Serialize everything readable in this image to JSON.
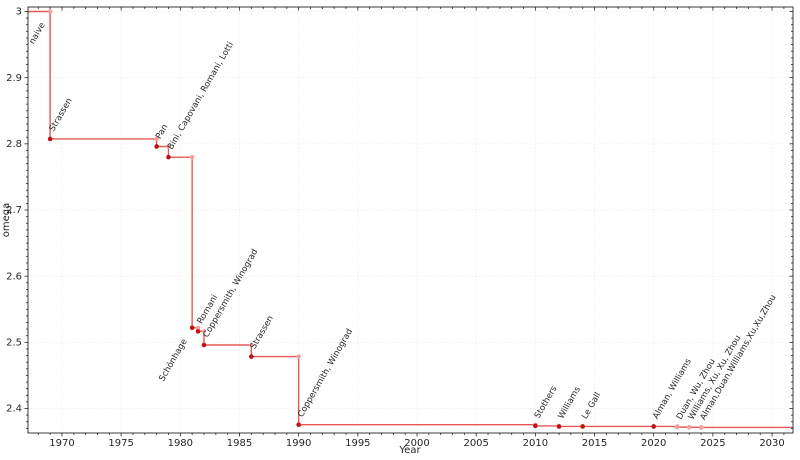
{
  "chart_data": {
    "type": "line",
    "style": "step-post",
    "title": "",
    "xlabel": "Year",
    "ylabel": "omega",
    "grid": true,
    "legend": false,
    "xlim": [
      1967.13,
      2031.77
    ],
    "ylim": [
      2.363,
      3.0068
    ],
    "x_major_ticks": [
      {
        "v": 1970,
        "t": "1970"
      },
      {
        "v": 1975,
        "t": "1975"
      },
      {
        "v": 1980,
        "t": "1980"
      },
      {
        "v": 1985,
        "t": "1985"
      },
      {
        "v": 1990,
        "t": "1990"
      },
      {
        "v": 1995,
        "t": "1995"
      },
      {
        "v": 2000,
        "t": "2000"
      },
      {
        "v": 2005,
        "t": "2005"
      },
      {
        "v": 2010,
        "t": "2010"
      },
      {
        "v": 2015,
        "t": "2015"
      },
      {
        "v": 2020,
        "t": "2020"
      },
      {
        "v": 2025,
        "t": "2025"
      },
      {
        "v": 2030,
        "t": "2030"
      }
    ],
    "y_major_ticks": [
      {
        "v": 2.4,
        "t": "2.4"
      },
      {
        "v": 2.5,
        "t": "2.5"
      },
      {
        "v": 2.6,
        "t": "2.6"
      },
      {
        "v": 2.7,
        "t": "2.7"
      },
      {
        "v": 2.8,
        "t": "2.8"
      },
      {
        "v": 2.9,
        "t": "2.9"
      },
      {
        "v": 3.0,
        "t": "3"
      }
    ],
    "x_minor_step": 1,
    "y_minor_step": 0.01,
    "colors": {
      "line": "#e23b3b",
      "point": "#c11212",
      "corner_point": "#f2a29e",
      "recent_point": "#f2a29e",
      "label": "#1a1a1a",
      "recent_label": "#a6a6a6",
      "grid": "#cfcfcf",
      "axis": "#262626"
    },
    "points": [
      {
        "year": 1969,
        "omega": 3.0,
        "label": "naive",
        "side": "below",
        "style": "corner"
      },
      {
        "year": 1969,
        "omega": 2.8074,
        "label": "Strassen",
        "side": "above",
        "style": "solid"
      },
      {
        "year": 1978,
        "omega": 2.796,
        "label": "Pan",
        "side": "above",
        "style": "solid"
      },
      {
        "year": 1979,
        "omega": 2.7799,
        "label": "Bini, Capovani, Romani, Lotti",
        "side": "above",
        "style": "solid"
      },
      {
        "year": 1981,
        "omega": 2.522,
        "label": "Schönhage",
        "side": "below",
        "style": "solid"
      },
      {
        "year": 1981.5,
        "omega": 2.5166,
        "label": "Romani",
        "side": "above",
        "style": "solid"
      },
      {
        "year": 1982,
        "omega": 2.496,
        "label": "Coppersmith, Winograd",
        "side": "above",
        "style": "solid"
      },
      {
        "year": 1986,
        "omega": 2.4785,
        "label": "Strassen",
        "side": "above",
        "style": "solid"
      },
      {
        "year": 1990,
        "omega": 2.3755,
        "label": "Coppersmith, Winograd",
        "side": "above",
        "style": "solid"
      },
      {
        "year": 2010,
        "omega": 2.3737,
        "label": "Stothers",
        "side": "above",
        "style": "solid"
      },
      {
        "year": 2012,
        "omega": 2.3729,
        "label": "Williams",
        "side": "above",
        "style": "solid"
      },
      {
        "year": 2014,
        "omega": 2.37286,
        "label": "Le Gall",
        "side": "above",
        "style": "solid"
      },
      {
        "year": 2020,
        "omega": 2.37286,
        "label": "Alman, Williams",
        "side": "above",
        "style": "solid"
      },
      {
        "year": 2022,
        "omega": 2.37188,
        "label": "Duan, Wu, Zhou",
        "side": "above",
        "style": "recent"
      },
      {
        "year": 2023,
        "omega": 2.37155,
        "label": "Williams, Xu, Xu, Zhou",
        "side": "above",
        "style": "recent"
      },
      {
        "year": 2024,
        "omega": 2.37134,
        "label": "Alman,Duan,Williams,Xu,Xu,Zhou",
        "side": "above",
        "style": "recent"
      }
    ]
  }
}
